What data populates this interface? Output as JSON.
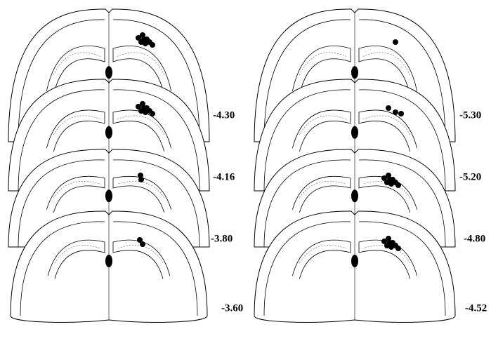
{
  "left_column": {
    "labels": [
      "-4.30",
      "-4.16",
      "-3.80",
      "-3.60"
    ]
  },
  "right_column": {
    "labels": [
      "-5.30",
      "-5.20",
      "-4.80",
      "-4.52"
    ]
  }
}
